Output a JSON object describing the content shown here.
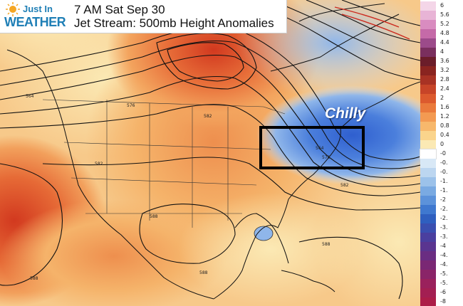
{
  "brand": {
    "line1": "Just In",
    "line2": "WEATHER"
  },
  "title": {
    "line1": "7 AM Sat Sep 30",
    "line2": "Jet Stream: 500mb Height Anomalies"
  },
  "annotation": {
    "label": "Chilly"
  },
  "contour_labels": [
    "564",
    "576",
    "582",
    "582",
    "576",
    "564",
    "582",
    "588",
    "588",
    "588",
    "588"
  ],
  "colorbar": {
    "labels": [
      "6",
      "5.6",
      "5.2",
      "4.8",
      "4.4",
      "4",
      "3.6",
      "3.2",
      "2.8",
      "2.4",
      "2",
      "1.6",
      "1.2",
      "0.8",
      "0.4",
      "0",
      "-0",
      "-0.",
      "-0.",
      "-1.",
      "-1.",
      "-2",
      "-2.",
      "-2.",
      "-3.",
      "-3.",
      "-4",
      "-4.",
      "-4.",
      "-5.",
      "-5.",
      "-6",
      "-8"
    ],
    "colors": [
      "#f4d6e8",
      "#e8b4d6",
      "#d98cc0",
      "#c56aa8",
      "#9c4b8a",
      "#7a2f5e",
      "#6b1d2a",
      "#8a2420",
      "#a83224",
      "#c74428",
      "#dc5a2e",
      "#ea7a3c",
      "#f39a52",
      "#f7b86c",
      "#fad48c",
      "#fbe9b4",
      "#ffffff",
      "#d8e8f6",
      "#bcd6f0",
      "#9cc2ea",
      "#7aaae2",
      "#5c92da",
      "#3f78cf",
      "#2f5fbf",
      "#3a4fb0",
      "#4a3f9f",
      "#5a3590",
      "#6a2d82",
      "#7a2874",
      "#8a2468",
      "#9a215c",
      "#a31f52",
      "#ac1d48"
    ]
  }
}
